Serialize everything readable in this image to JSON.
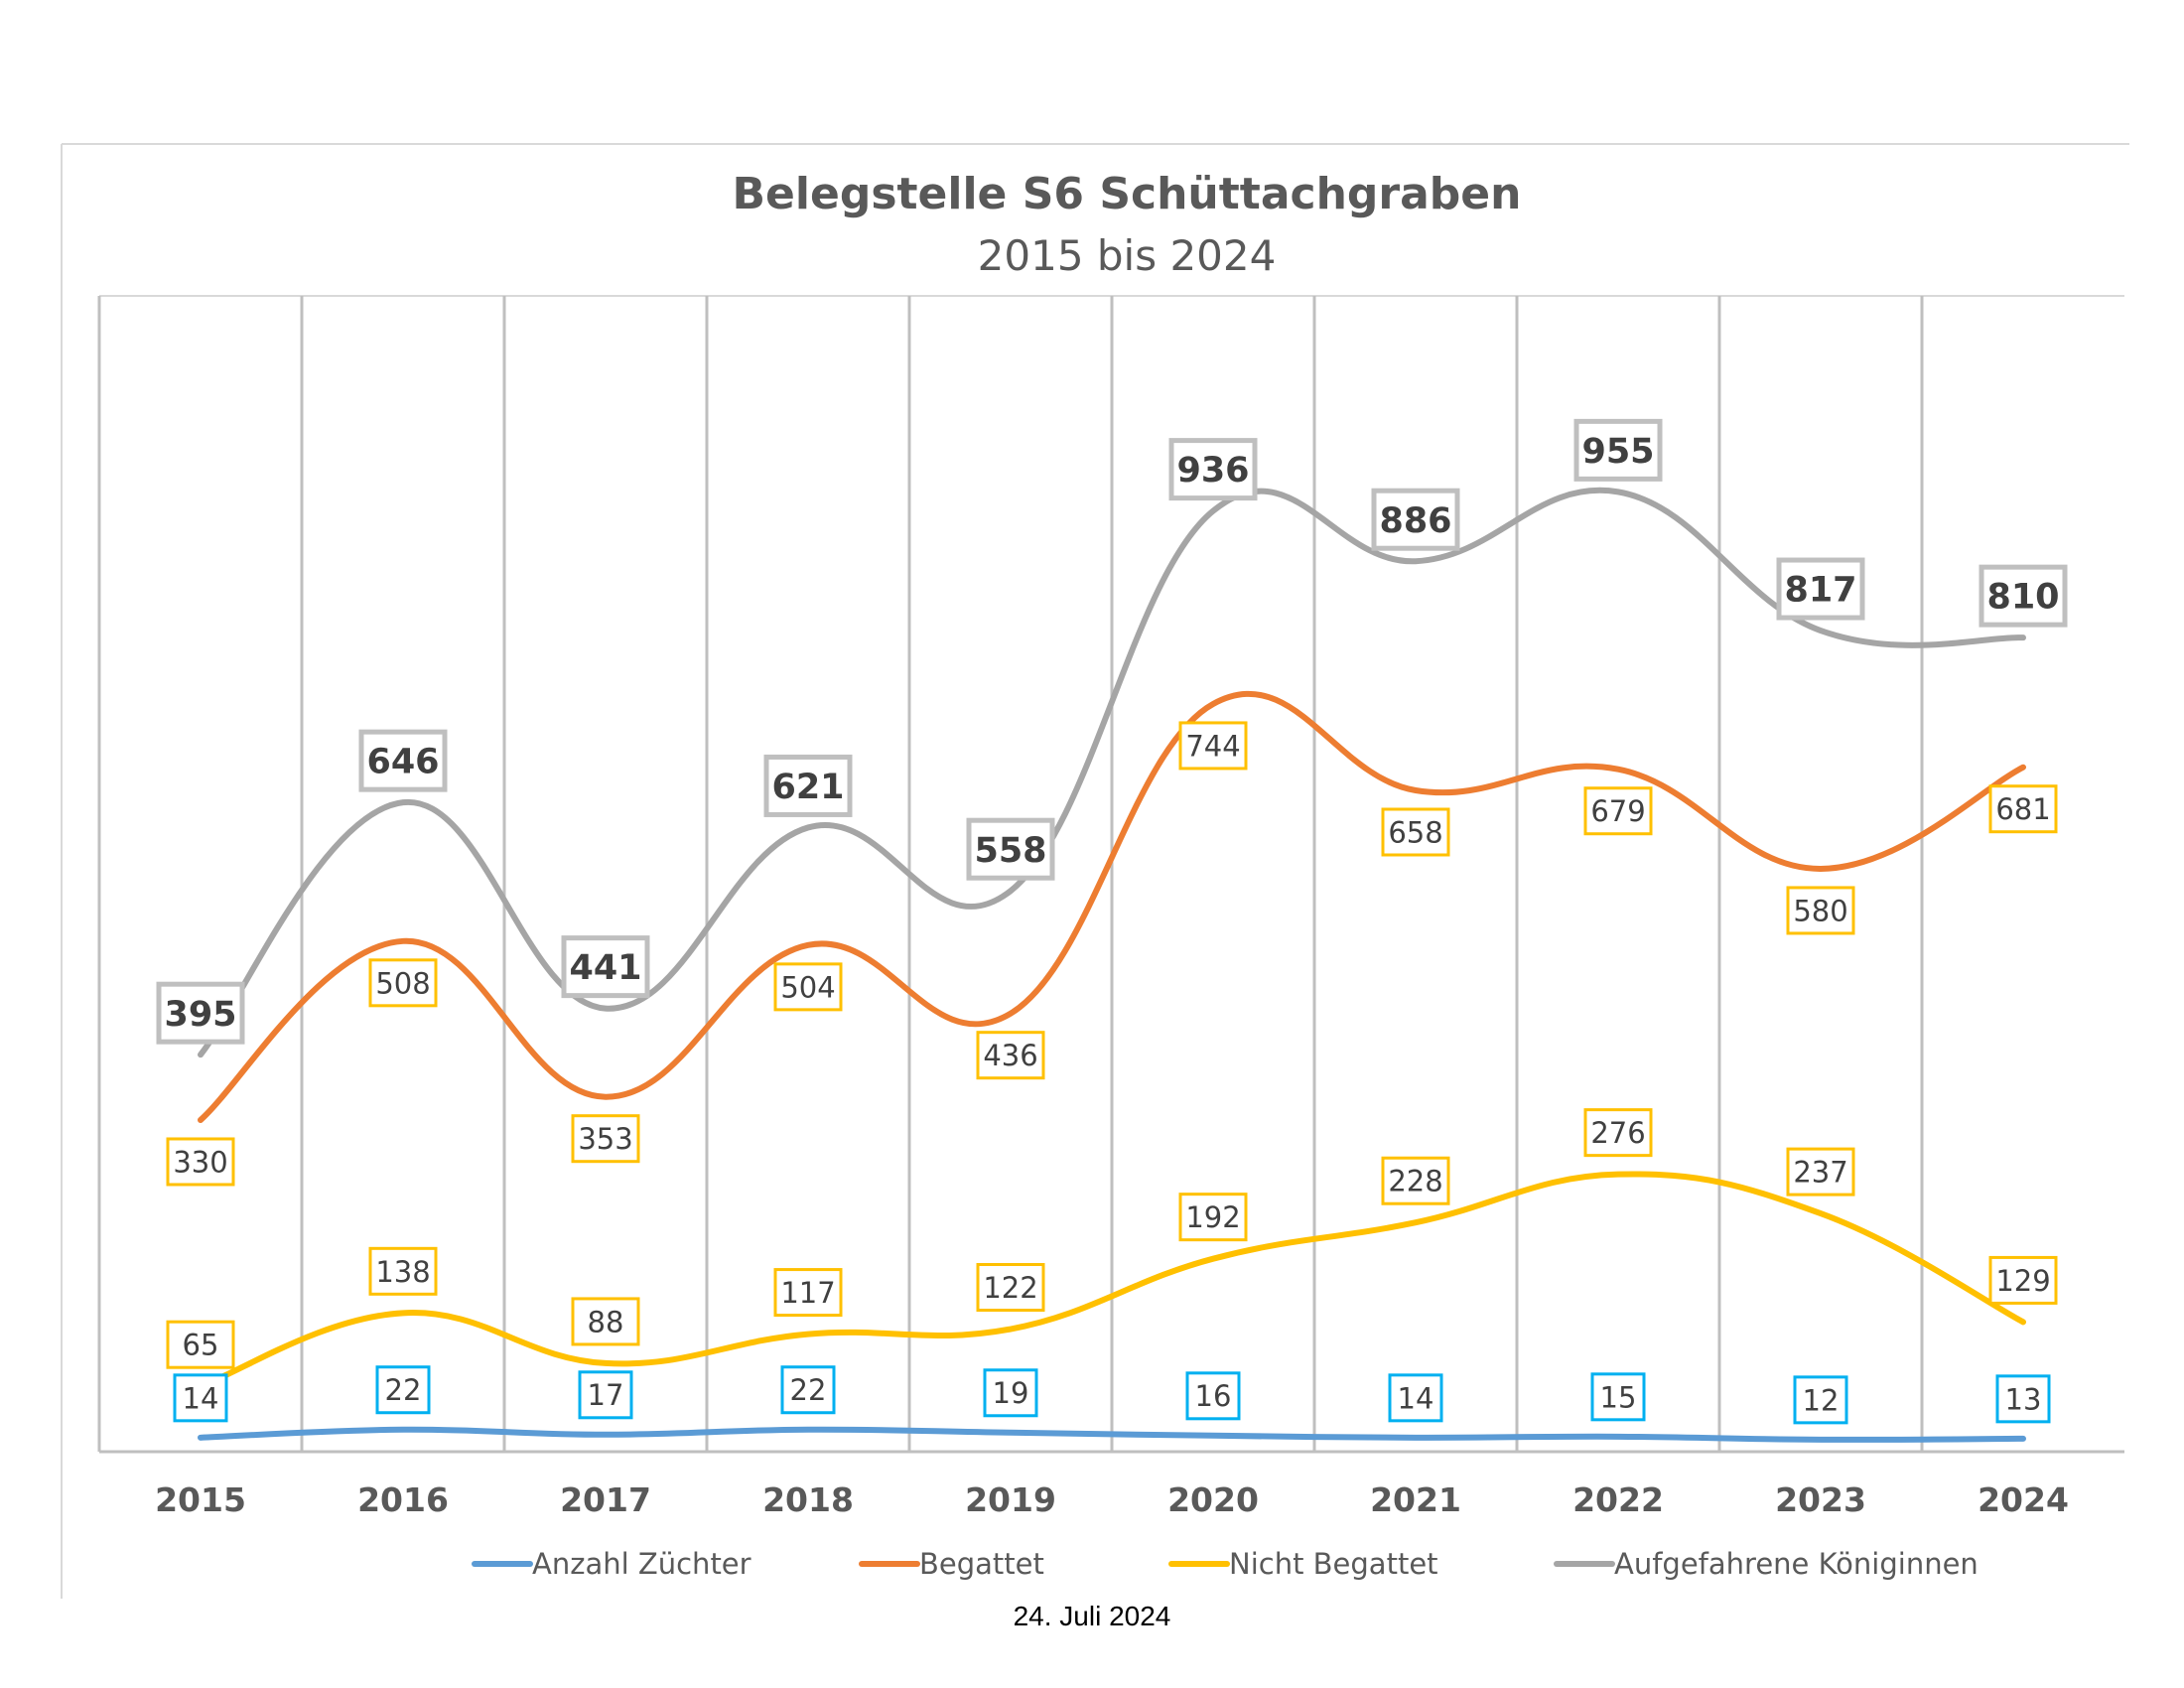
{
  "chart_data": {
    "type": "line",
    "title": "Belegstelle S6 Schüttachgraben",
    "subtitle": "2015 bis 2024",
    "categories": [
      "2015",
      "2016",
      "2017",
      "2018",
      "2019",
      "2020",
      "2021",
      "2022",
      "2023",
      "2024"
    ],
    "ylim": [
      0,
      1150
    ],
    "grid": "vertical",
    "legend_position": "bottom",
    "series": [
      {
        "name": "Anzahl Züchter",
        "color": "#5b9bd5",
        "label_border": "#00b0f0",
        "values": [
          14,
          22,
          17,
          22,
          19,
          16,
          14,
          15,
          12,
          13
        ],
        "labels": [
          "14",
          "22",
          "17",
          "22",
          "19",
          "16",
          "14",
          "15",
          "12",
          "13"
        ]
      },
      {
        "name": "Begattet",
        "color": "#ed7d31",
        "label_border": "#ffc000",
        "values": [
          330,
          508,
          353,
          504,
          436,
          744,
          658,
          679,
          580,
          681
        ],
        "labels": [
          "330",
          "508",
          "353",
          "504",
          "436",
          "744",
          "658",
          "679",
          "580",
          "681"
        ]
      },
      {
        "name": "Nicht Begattet",
        "color": "#ffc000",
        "label_border": "#ffc000",
        "values": [
          65,
          138,
          88,
          117,
          122,
          192,
          228,
          276,
          237,
          129
        ],
        "labels": [
          "65",
          "138",
          "88",
          "117",
          "122",
          "192",
          "228",
          "276",
          "237",
          "129"
        ]
      },
      {
        "name": "Aufgefahrene Königinnen",
        "color": "#a5a5a5",
        "label_border": "#bfbfbf",
        "values": [
          395,
          646,
          441,
          621,
          558,
          936,
          886,
          955,
          817,
          810
        ],
        "labels": [
          "395",
          "646",
          "441",
          "621",
          "558",
          "936",
          "886",
          "955",
          "817",
          "810"
        ]
      }
    ]
  },
  "footer": {
    "date": "24. Juli 2024"
  }
}
